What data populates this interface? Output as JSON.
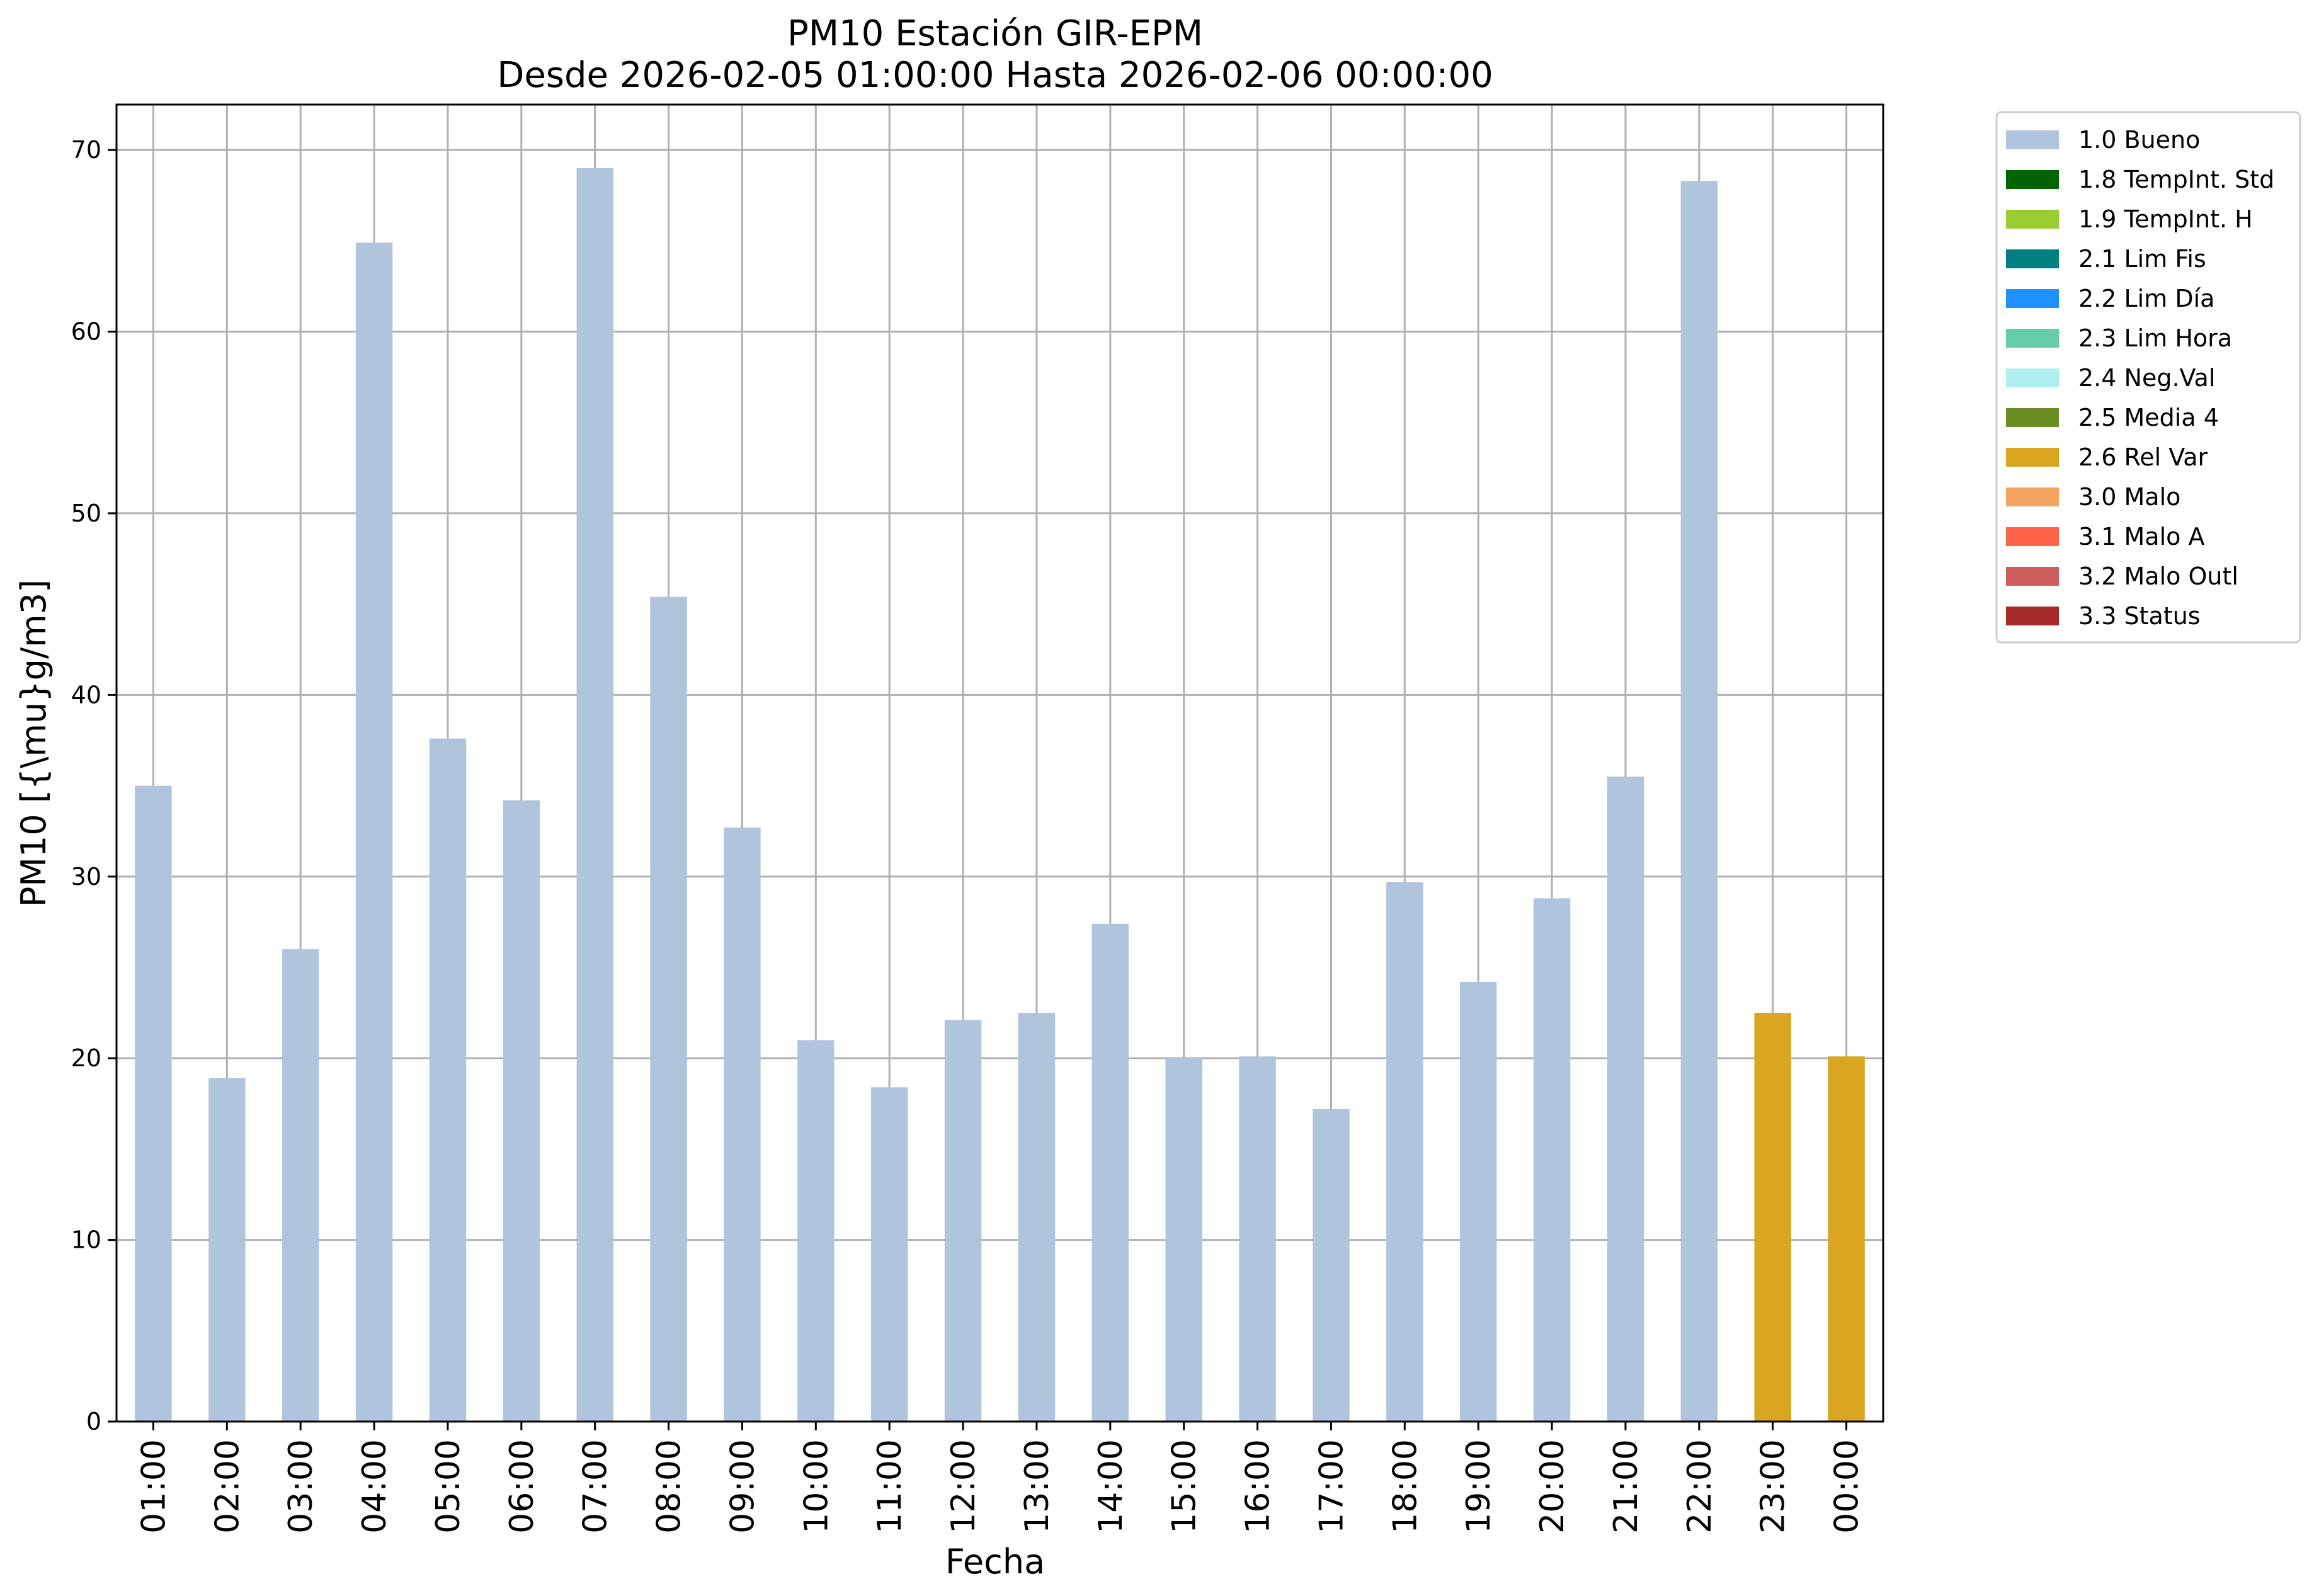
{
  "chart_data": {
    "type": "bar",
    "title_line1": "PM10 Estación GIR-EPM",
    "title_line2": "Desde 2026-02-05 01:00:00 Hasta 2026-02-06 00:00:00",
    "xlabel": "Fecha",
    "ylabel": "PM10 [{\\mu}g/m3]",
    "ylim": [
      0,
      72.5
    ],
    "yticks": [
      0,
      10,
      20,
      30,
      40,
      50,
      60,
      70
    ],
    "grid": true,
    "legend_position": "outside-top-right",
    "categories": [
      "01:00",
      "02:00",
      "03:00",
      "04:00",
      "05:00",
      "06:00",
      "07:00",
      "08:00",
      "09:00",
      "10:00",
      "11:00",
      "12:00",
      "13:00",
      "14:00",
      "15:00",
      "16:00",
      "17:00",
      "18:00",
      "19:00",
      "20:00",
      "21:00",
      "22:00",
      "23:00",
      "00:00"
    ],
    "values": [
      35.0,
      18.9,
      26.0,
      64.9,
      37.6,
      34.2,
      69.0,
      45.4,
      32.7,
      21.0,
      18.4,
      22.1,
      22.5,
      27.4,
      20.0,
      20.1,
      17.2,
      29.7,
      24.2,
      28.8,
      35.5,
      68.3,
      22.5,
      20.1
    ],
    "flags": [
      "1.0 Bueno",
      "1.0 Bueno",
      "1.0 Bueno",
      "1.0 Bueno",
      "1.0 Bueno",
      "1.0 Bueno",
      "1.0 Bueno",
      "1.0 Bueno",
      "1.0 Bueno",
      "1.0 Bueno",
      "1.0 Bueno",
      "1.0 Bueno",
      "1.0 Bueno",
      "1.0 Bueno",
      "1.0 Bueno",
      "1.0 Bueno",
      "1.0 Bueno",
      "1.0 Bueno",
      "1.0 Bueno",
      "1.0 Bueno",
      "1.0 Bueno",
      "1.0 Bueno",
      "2.6 Rel Var",
      "2.6 Rel Var"
    ],
    "legend": [
      {
        "label": "1.0 Bueno",
        "color": "#b0c4de"
      },
      {
        "label": "1.8 TempInt. Std",
        "color": "#006400"
      },
      {
        "label": "1.9 TempInt. H",
        "color": "#9acd32"
      },
      {
        "label": "2.1 Lim Fis",
        "color": "#008080"
      },
      {
        "label": "2.2 Lim Día",
        "color": "#1e90ff"
      },
      {
        "label": "2.3 Lim Hora",
        "color": "#66cdaa"
      },
      {
        "label": "2.4 Neg.Val",
        "color": "#afeeee"
      },
      {
        "label": "2.5 Media 4",
        "color": "#6b8e23"
      },
      {
        "label": "2.6 Rel Var",
        "color": "#daa520"
      },
      {
        "label": "3.0 Malo",
        "color": "#f4a460"
      },
      {
        "label": "3.1 Malo A",
        "color": "#ff6347"
      },
      {
        "label": "3.2 Malo Outl",
        "color": "#cd5c5c"
      },
      {
        "label": "3.3 Status",
        "color": "#a52a2a"
      }
    ],
    "colors": {
      "grid": "#b0b0b0",
      "axis": "#000000"
    }
  }
}
